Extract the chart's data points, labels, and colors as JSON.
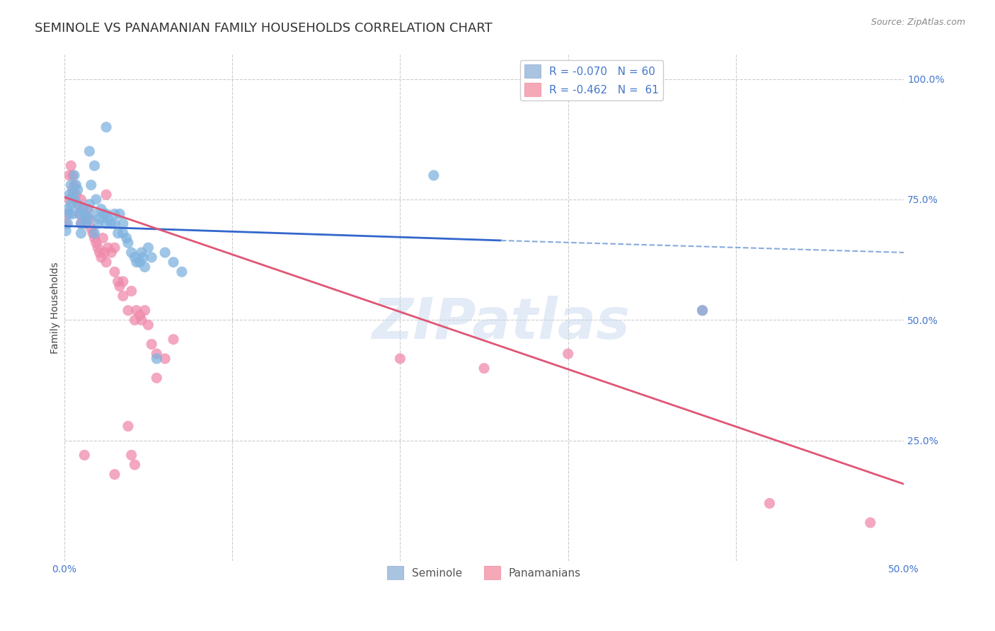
{
  "title": "SEMINOLE VS PANAMANIAN FAMILY HOUSEHOLDS CORRELATION CHART",
  "source": "Source: ZipAtlas.com",
  "ylabel": "Family Households",
  "watermark": "ZIPatlas",
  "xlim": [
    0.0,
    0.5
  ],
  "ylim": [
    0.0,
    1.05
  ],
  "xticks": [
    0.0,
    0.1,
    0.2,
    0.3,
    0.4,
    0.5
  ],
  "xtick_labels": [
    "0.0%",
    "",
    "",
    "",
    "",
    "50.0%"
  ],
  "ytick_labels_right": [
    "100.0%",
    "75.0%",
    "50.0%",
    "25.0%",
    ""
  ],
  "ytick_values_right": [
    1.0,
    0.75,
    0.5,
    0.25,
    0.0
  ],
  "legend_blue_label": "R = -0.070   N = 60",
  "legend_pink_label": "R = -0.462   N =  61",
  "legend_blue_color": "#a8c4e0",
  "legend_pink_color": "#f4a8b8",
  "blue_scatter": [
    [
      0.001,
      0.685
    ],
    [
      0.002,
      0.7
    ],
    [
      0.002,
      0.73
    ],
    [
      0.003,
      0.76
    ],
    [
      0.003,
      0.72
    ],
    [
      0.004,
      0.78
    ],
    [
      0.004,
      0.74
    ],
    [
      0.005,
      0.76
    ],
    [
      0.005,
      0.72
    ],
    [
      0.006,
      0.8
    ],
    [
      0.006,
      0.75
    ],
    [
      0.007,
      0.78
    ],
    [
      0.008,
      0.77
    ],
    [
      0.008,
      0.74
    ],
    [
      0.009,
      0.72
    ],
    [
      0.01,
      0.7
    ],
    [
      0.01,
      0.68
    ],
    [
      0.011,
      0.73
    ],
    [
      0.012,
      0.72
    ],
    [
      0.013,
      0.7
    ],
    [
      0.014,
      0.71
    ],
    [
      0.015,
      0.74
    ],
    [
      0.015,
      0.85
    ],
    [
      0.016,
      0.78
    ],
    [
      0.017,
      0.72
    ],
    [
      0.018,
      0.82
    ],
    [
      0.018,
      0.68
    ],
    [
      0.019,
      0.75
    ],
    [
      0.02,
      0.7
    ],
    [
      0.021,
      0.71
    ],
    [
      0.022,
      0.73
    ],
    [
      0.023,
      0.72
    ],
    [
      0.025,
      0.9
    ],
    [
      0.025,
      0.72
    ],
    [
      0.025,
      0.7
    ],
    [
      0.026,
      0.71
    ],
    [
      0.028,
      0.7
    ],
    [
      0.03,
      0.72
    ],
    [
      0.03,
      0.7
    ],
    [
      0.032,
      0.68
    ],
    [
      0.033,
      0.72
    ],
    [
      0.035,
      0.7
    ],
    [
      0.035,
      0.68
    ],
    [
      0.037,
      0.67
    ],
    [
      0.038,
      0.66
    ],
    [
      0.04,
      0.64
    ],
    [
      0.042,
      0.63
    ],
    [
      0.043,
      0.62
    ],
    [
      0.045,
      0.62
    ],
    [
      0.046,
      0.64
    ],
    [
      0.047,
      0.63
    ],
    [
      0.048,
      0.61
    ],
    [
      0.05,
      0.65
    ],
    [
      0.052,
      0.63
    ],
    [
      0.055,
      0.42
    ],
    [
      0.06,
      0.64
    ],
    [
      0.065,
      0.62
    ],
    [
      0.07,
      0.6
    ],
    [
      0.22,
      0.8
    ],
    [
      0.38,
      0.52
    ]
  ],
  "pink_scatter": [
    [
      0.001,
      0.7
    ],
    [
      0.002,
      0.72
    ],
    [
      0.003,
      0.8
    ],
    [
      0.003,
      0.75
    ],
    [
      0.004,
      0.82
    ],
    [
      0.005,
      0.8
    ],
    [
      0.005,
      0.77
    ],
    [
      0.006,
      0.78
    ],
    [
      0.007,
      0.76
    ],
    [
      0.008,
      0.74
    ],
    [
      0.009,
      0.72
    ],
    [
      0.01,
      0.75
    ],
    [
      0.01,
      0.7
    ],
    [
      0.011,
      0.73
    ],
    [
      0.012,
      0.71
    ],
    [
      0.013,
      0.7
    ],
    [
      0.014,
      0.73
    ],
    [
      0.015,
      0.71
    ],
    [
      0.016,
      0.69
    ],
    [
      0.017,
      0.68
    ],
    [
      0.018,
      0.67
    ],
    [
      0.019,
      0.66
    ],
    [
      0.02,
      0.65
    ],
    [
      0.021,
      0.64
    ],
    [
      0.022,
      0.63
    ],
    [
      0.023,
      0.67
    ],
    [
      0.024,
      0.64
    ],
    [
      0.025,
      0.76
    ],
    [
      0.025,
      0.62
    ],
    [
      0.026,
      0.65
    ],
    [
      0.028,
      0.64
    ],
    [
      0.03,
      0.65
    ],
    [
      0.03,
      0.6
    ],
    [
      0.032,
      0.58
    ],
    [
      0.033,
      0.57
    ],
    [
      0.035,
      0.58
    ],
    [
      0.035,
      0.55
    ],
    [
      0.038,
      0.52
    ],
    [
      0.04,
      0.56
    ],
    [
      0.042,
      0.5
    ],
    [
      0.043,
      0.52
    ],
    [
      0.045,
      0.51
    ],
    [
      0.046,
      0.5
    ],
    [
      0.048,
      0.52
    ],
    [
      0.05,
      0.49
    ],
    [
      0.052,
      0.45
    ],
    [
      0.055,
      0.43
    ],
    [
      0.06,
      0.42
    ],
    [
      0.012,
      0.22
    ],
    [
      0.03,
      0.18
    ],
    [
      0.038,
      0.28
    ],
    [
      0.055,
      0.38
    ],
    [
      0.065,
      0.46
    ],
    [
      0.04,
      0.22
    ],
    [
      0.042,
      0.2
    ],
    [
      0.2,
      0.42
    ],
    [
      0.25,
      0.4
    ],
    [
      0.3,
      0.43
    ],
    [
      0.38,
      0.52
    ],
    [
      0.42,
      0.12
    ],
    [
      0.48,
      0.08
    ]
  ],
  "blue_line_solid": {
    "x0": 0.0,
    "y0": 0.695,
    "x1": 0.26,
    "y1": 0.665
  },
  "blue_line_dashed": {
    "x0": 0.26,
    "y0": 0.665,
    "x1": 0.5,
    "y1": 0.64
  },
  "pink_line": {
    "x0": 0.0,
    "y0": 0.755,
    "x1": 0.5,
    "y1": 0.16
  },
  "blue_scatter_color": "#7fb3e0",
  "pink_scatter_color": "#f08aab",
  "background_color": "#ffffff",
  "grid_color": "#cccccc",
  "title_fontsize": 13,
  "label_fontsize": 10,
  "tick_fontsize": 10,
  "axis_color": "#4477cc"
}
